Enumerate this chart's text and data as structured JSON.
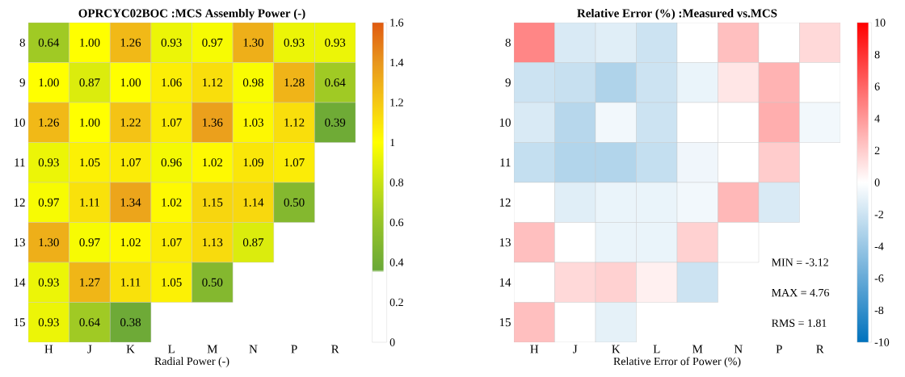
{
  "chart_data": [
    {
      "type": "heatmap",
      "title": "OPRCYC02BOC :MCS Assembly Power (-)",
      "xlabel": "Radial Power (-)",
      "categories": [
        "H",
        "J",
        "K",
        "L",
        "M",
        "N",
        "P",
        "R"
      ],
      "y_categories": [
        "8",
        "9",
        "10",
        "11",
        "12",
        "13",
        "14",
        "15"
      ],
      "cells": [
        [
          0.64,
          1.0,
          1.26,
          0.93,
          0.97,
          1.3,
          0.93,
          0.93
        ],
        [
          1.0,
          0.87,
          1.0,
          1.06,
          1.12,
          0.98,
          1.28,
          0.64
        ],
        [
          1.26,
          1.0,
          1.22,
          1.07,
          1.36,
          1.03,
          1.12,
          0.39
        ],
        [
          0.93,
          1.05,
          1.07,
          0.96,
          1.02,
          1.09,
          1.07,
          null
        ],
        [
          0.97,
          1.11,
          1.34,
          1.02,
          1.15,
          1.14,
          0.5,
          null
        ],
        [
          1.3,
          0.97,
          1.02,
          1.07,
          1.13,
          0.87,
          null,
          null
        ],
        [
          0.93,
          1.27,
          1.11,
          1.05,
          0.5,
          null,
          null,
          null
        ],
        [
          0.93,
          0.64,
          0.38,
          null,
          null,
          null,
          null,
          null
        ]
      ],
      "cell_labels": [
        [
          "0.64",
          "1.00",
          "1.26",
          "0.93",
          "0.97",
          "1.30",
          "0.93",
          "0.93"
        ],
        [
          "1.00",
          "0.87",
          "1.00",
          "1.06",
          "1.12",
          "0.98",
          "1.28",
          "0.64"
        ],
        [
          "1.26",
          "1.00",
          "1.22",
          "1.07",
          "1.36",
          "1.03",
          "1.12",
          "0.39"
        ],
        [
          "0.93",
          "1.05",
          "1.07",
          "0.96",
          "1.02",
          "1.09",
          "1.07",
          null
        ],
        [
          "0.97",
          "1.11",
          "1.34",
          "1.02",
          "1.15",
          "1.14",
          "0.50",
          null
        ],
        [
          "1.30",
          "0.97",
          "1.02",
          "1.07",
          "1.13",
          "0.87",
          null,
          null
        ],
        [
          "0.93",
          "1.27",
          "1.11",
          "1.05",
          "0.50",
          null,
          null,
          null
        ],
        [
          "0.93",
          "0.64",
          "0.38",
          null,
          null,
          null,
          null,
          null
        ]
      ],
      "clim": [
        0,
        1.6
      ],
      "cticks": [
        0,
        0.2,
        0.4,
        0.6,
        0.8,
        1,
        1.2,
        1.4,
        1.6
      ]
    },
    {
      "type": "heatmap",
      "title": "Relative Error (%) :Measured vs.MCS",
      "xlabel": "Relative Error of Power (%)",
      "categories": [
        "H",
        "J",
        "K",
        "L",
        "M",
        "N",
        "P",
        "R"
      ],
      "y_categories": [
        "8",
        "9",
        "10",
        "11",
        "12",
        "13",
        "14",
        "15"
      ],
      "cells": [
        [
          4.76,
          -1.5,
          -1.2,
          -2,
          0,
          2.5,
          0,
          1.5
        ],
        [
          -2,
          -2.2,
          -3.12,
          -2,
          -0.8,
          1,
          3,
          0
        ],
        [
          -1.5,
          -2.8,
          -0.5,
          -2,
          0,
          0,
          3.2,
          -0.5
        ],
        [
          -2.3,
          -3,
          -3,
          -2.3,
          -0.6,
          0,
          2,
          null
        ],
        [
          0,
          -1.2,
          -0.8,
          -0.8,
          -0.5,
          2.8,
          -1.5,
          null
        ],
        [
          2.5,
          0,
          -0.8,
          -0.8,
          1.8,
          0,
          null,
          null
        ],
        [
          0,
          1.5,
          1.8,
          0.6,
          -2,
          null,
          null,
          null
        ],
        [
          2.5,
          0,
          -1,
          null,
          null,
          null,
          null,
          null
        ]
      ],
      "clim": [
        -10,
        10
      ],
      "cticks": [
        -10,
        -8,
        -6,
        -4,
        -2,
        0,
        2,
        4,
        6,
        8,
        10
      ],
      "annotations": [
        "MIN = -3.12",
        "MAX = 4.76",
        "RMS = 1.81"
      ]
    }
  ]
}
